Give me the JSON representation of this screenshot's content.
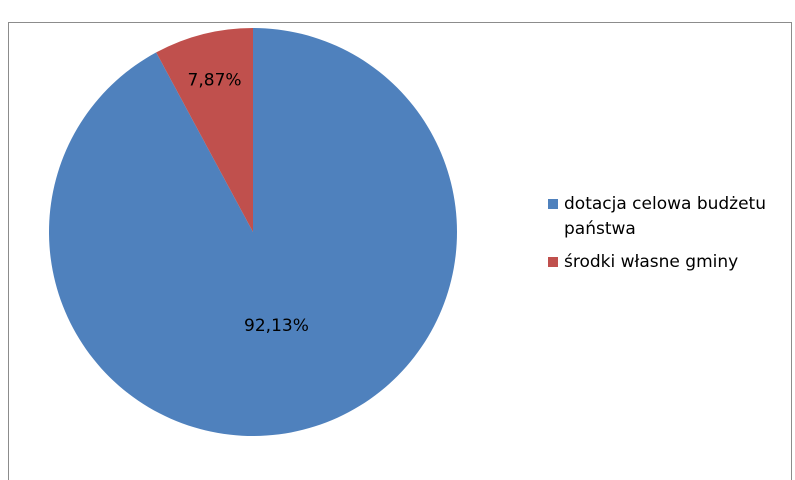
{
  "chart_data": {
    "type": "pie",
    "title": "",
    "categories": [
      "dotacja celowa budżetu państwa",
      "środki własne gminy"
    ],
    "values": [
      92.13,
      7.87
    ],
    "labels": [
      "92,13%",
      "7,87%"
    ],
    "colors": [
      "#4f81bd",
      "#c0504d"
    ],
    "legend_position": "right",
    "start_angle_deg": 0,
    "direction": "clockwise"
  },
  "legend": {
    "items": [
      {
        "label": "dotacja celowa budżetu państwa",
        "color": "#4f81bd"
      },
      {
        "label": "środki własne gminy",
        "color": "#c0504d"
      }
    ]
  }
}
